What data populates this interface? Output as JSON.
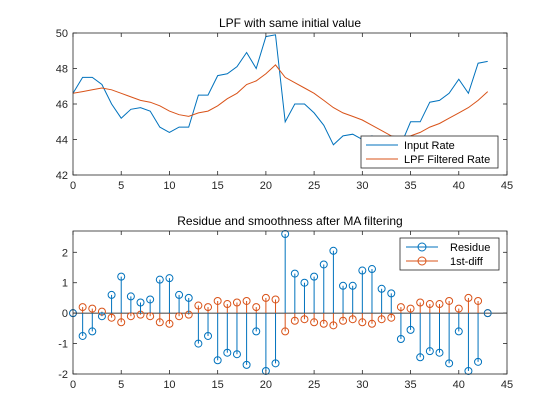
{
  "chart_data": [
    {
      "type": "line",
      "title": "LPF with same initial value",
      "xlabel": "",
      "ylabel": "",
      "xlim": [
        0,
        45
      ],
      "ylim": [
        42,
        50
      ],
      "xticks": [
        0,
        5,
        10,
        15,
        20,
        25,
        30,
        35,
        40,
        45
      ],
      "yticks": [
        42,
        44,
        46,
        48,
        50
      ],
      "grid": false,
      "legend_position": "bottom-right",
      "series": [
        {
          "name": "Input Rate",
          "color": "#0072BD",
          "x": [
            0,
            1,
            2,
            3,
            4,
            5,
            6,
            7,
            8,
            9,
            10,
            11,
            12,
            13,
            14,
            15,
            16,
            17,
            18,
            19,
            20,
            21,
            22,
            23,
            24,
            25,
            26,
            27,
            28,
            29,
            30,
            31,
            32,
            33,
            34,
            35,
            36,
            37,
            38,
            39,
            40,
            41,
            42,
            43
          ],
          "y": [
            46.6,
            47.5,
            47.5,
            47.1,
            46.0,
            45.2,
            45.7,
            45.8,
            45.6,
            44.7,
            44.4,
            44.7,
            44.7,
            46.5,
            46.5,
            47.6,
            47.7,
            48.1,
            48.9,
            48.0,
            49.8,
            49.9,
            45.0,
            46.0,
            46.0,
            45.5,
            44.8,
            43.7,
            44.2,
            44.3,
            44.0,
            44.2,
            43.5,
            43.3,
            43.7,
            45.0,
            45.0,
            46.1,
            46.2,
            46.6,
            47.4,
            46.6,
            48.3,
            48.4
          ]
        },
        {
          "name": "LPF Filtered Rate",
          "color": "#D95319",
          "x": [
            0,
            1,
            2,
            3,
            4,
            5,
            6,
            7,
            8,
            9,
            10,
            11,
            12,
            13,
            14,
            15,
            16,
            17,
            18,
            19,
            20,
            21,
            22,
            23,
            24,
            25,
            26,
            27,
            28,
            29,
            30,
            31,
            32,
            33,
            34,
            35,
            36,
            37,
            38,
            39,
            40,
            41,
            42,
            43
          ],
          "y": [
            46.6,
            46.7,
            46.8,
            46.9,
            46.8,
            46.6,
            46.4,
            46.2,
            46.1,
            45.9,
            45.6,
            45.4,
            45.3,
            45.5,
            45.6,
            45.9,
            46.3,
            46.6,
            47.1,
            47.3,
            47.7,
            48.2,
            47.5,
            47.2,
            46.9,
            46.6,
            46.2,
            45.8,
            45.5,
            45.3,
            45.1,
            44.8,
            44.5,
            44.2,
            44.1,
            44.2,
            44.4,
            44.7,
            44.9,
            45.2,
            45.5,
            45.8,
            46.2,
            46.7
          ]
        }
      ]
    },
    {
      "type": "stem",
      "title": "Residue and smoothness after MA filtering",
      "xlabel": "",
      "ylabel": "",
      "xlim": [
        0,
        45
      ],
      "ylim": [
        -2,
        2.7
      ],
      "xticks": [
        0,
        5,
        10,
        15,
        20,
        25,
        30,
        35,
        40,
        45
      ],
      "yticks": [
        -2,
        -1,
        0,
        1,
        2
      ],
      "grid": false,
      "legend_position": "top-right",
      "series": [
        {
          "name": "Residue",
          "color": "#0072BD",
          "x": [
            0,
            1,
            2,
            3,
            4,
            5,
            6,
            7,
            8,
            9,
            10,
            11,
            12,
            13,
            14,
            15,
            16,
            17,
            18,
            19,
            20,
            21,
            22,
            23,
            24,
            25,
            26,
            27,
            28,
            29,
            30,
            31,
            32,
            33,
            34,
            35,
            36,
            37,
            38,
            39,
            40,
            41,
            42,
            43
          ],
          "y": [
            0,
            -0.75,
            -0.6,
            -0.1,
            0.6,
            1.2,
            0.55,
            0.35,
            0.45,
            1.1,
            1.15,
            0.6,
            0.5,
            -1.0,
            -0.75,
            -1.55,
            -1.3,
            -1.35,
            -1.7,
            -0.6,
            -1.9,
            -1.65,
            2.6,
            1.3,
            1.0,
            1.2,
            1.6,
            2.05,
            0.9,
            0.9,
            1.4,
            1.45,
            0.8,
            0.65,
            -0.85,
            -0.55,
            -1.45,
            -1.25,
            -1.3,
            -1.65,
            -0.6,
            -1.9,
            -1.6,
            0
          ]
        },
        {
          "name": "1st-diff",
          "color": "#D95319",
          "x": [
            0,
            1,
            2,
            3,
            4,
            5,
            6,
            7,
            8,
            9,
            10,
            11,
            12,
            13,
            14,
            15,
            16,
            17,
            18,
            19,
            20,
            21,
            22,
            23,
            24,
            25,
            26,
            27,
            28,
            29,
            30,
            31,
            32,
            33,
            34,
            35,
            36,
            37,
            38,
            39,
            40,
            41,
            42,
            43
          ],
          "y": [
            0,
            0.2,
            0.15,
            0.05,
            -0.15,
            -0.3,
            -0.1,
            -0.05,
            -0.1,
            -0.3,
            -0.35,
            -0.1,
            -0.05,
            0.25,
            0.2,
            0.4,
            0.3,
            0.35,
            0.4,
            0.2,
            0.5,
            0.45,
            -0.6,
            -0.25,
            -0.2,
            -0.3,
            -0.35,
            -0.4,
            -0.25,
            -0.2,
            -0.3,
            -0.35,
            -0.2,
            -0.15,
            0.2,
            0.15,
            0.35,
            0.3,
            0.3,
            0.4,
            0.15,
            0.5,
            0.4,
            0
          ]
        }
      ]
    }
  ]
}
